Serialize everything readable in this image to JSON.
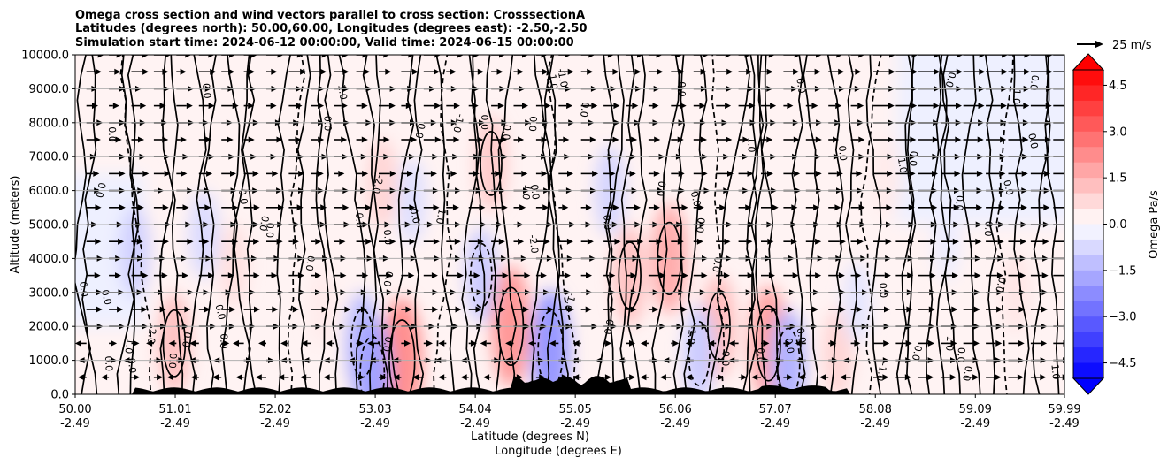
{
  "chart_data": {
    "type": "cross-section-contour",
    "title_lines": [
      "Omega cross section and wind vectors parallel to cross section: CrosssectionA",
      "Latitudes (degrees north): 50.00,60.00, Longitudes (degrees east): -2.50,-2.50",
      "Simulation start time: 2024-06-12 00:00:00, Valid time: 2024-06-15 00:00:00"
    ],
    "ylabel": "Altitude (meters)",
    "xlabel_lines": [
      "Latitude (degrees N)",
      "Longitude (degrees E)"
    ],
    "ylim": [
      0,
      10000
    ],
    "yticks": [
      "0.0",
      "1000.0",
      "2000.0",
      "3000.0",
      "4000.0",
      "5000.0",
      "6000.0",
      "7000.0",
      "8000.0",
      "9000.0",
      "10000.0"
    ],
    "xlim": [
      50.0,
      59.99
    ],
    "xticks": [
      {
        "lat": "50.00",
        "lon": "-2.49"
      },
      {
        "lat": "51.01",
        "lon": "-2.49"
      },
      {
        "lat": "52.02",
        "lon": "-2.49"
      },
      {
        "lat": "53.03",
        "lon": "-2.49"
      },
      {
        "lat": "54.04",
        "lon": "-2.49"
      },
      {
        "lat": "55.05",
        "lon": "-2.49"
      },
      {
        "lat": "56.06",
        "lon": "-2.49"
      },
      {
        "lat": "57.07",
        "lon": "-2.49"
      },
      {
        "lat": "58.08",
        "lon": "-2.49"
      },
      {
        "lat": "59.09",
        "lon": "-2.49"
      },
      {
        "lat": "59.99",
        "lon": "-2.49"
      }
    ],
    "grid": true,
    "colorbar": {
      "label": "Omega Pa/s",
      "ticks": [
        "4.5",
        "3.0",
        "1.5",
        "0.0",
        "−1.5",
        "−3.0",
        "−4.5"
      ],
      "range": [
        -5.0,
        5.0
      ],
      "colormap": "bwr"
    },
    "vector_key_label": "25 m/s",
    "contour_labels": [
      "0.0",
      "1.0",
      "-1.0",
      "-2.0"
    ],
    "regions": [
      {
        "lat": 51.0,
        "alt": 1500,
        "omega": 1.2
      },
      {
        "lat": 51.6,
        "alt": 3800,
        "omega": 0.6
      },
      {
        "lat": 52.5,
        "alt": 2600,
        "omega": 0.4
      },
      {
        "lat": 53.1,
        "alt": 6200,
        "omega": 0.8
      },
      {
        "lat": 53.3,
        "alt": 1000,
        "omega": 2.2
      },
      {
        "lat": 54.2,
        "alt": 6800,
        "omega": 1.0
      },
      {
        "lat": 54.4,
        "alt": 2000,
        "omega": 2.0
      },
      {
        "lat": 55.6,
        "alt": 3500,
        "omega": 1.2
      },
      {
        "lat": 56.0,
        "alt": 4000,
        "omega": 1.6
      },
      {
        "lat": 56.5,
        "alt": 2000,
        "omega": 1.3
      },
      {
        "lat": 57.0,
        "alt": 1500,
        "omega": 1.8
      },
      {
        "lat": 57.7,
        "alt": 1200,
        "omega": 0.8
      },
      {
        "lat": 58.2,
        "alt": 6400,
        "omega": 0.4
      },
      {
        "lat": 59.5,
        "alt": 3000,
        "omega": 0.5
      },
      {
        "lat": 50.6,
        "alt": 4200,
        "omega": -0.9
      },
      {
        "lat": 51.3,
        "alt": 4700,
        "omega": -0.7
      },
      {
        "lat": 52.9,
        "alt": 1500,
        "omega": -1.3
      },
      {
        "lat": 53.0,
        "alt": 600,
        "omega": -1.8
      },
      {
        "lat": 53.4,
        "alt": 5700,
        "omega": -0.6
      },
      {
        "lat": 54.1,
        "alt": 3500,
        "omega": -1.0
      },
      {
        "lat": 54.8,
        "alt": 1300,
        "omega": -2.0
      },
      {
        "lat": 55.4,
        "alt": 6000,
        "omega": -0.8
      },
      {
        "lat": 56.3,
        "alt": 1200,
        "omega": -1.0
      },
      {
        "lat": 57.2,
        "alt": 900,
        "omega": -1.5
      },
      {
        "lat": 57.9,
        "alt": 2700,
        "omega": -0.5
      },
      {
        "lat": 58.8,
        "alt": 4500,
        "omega": -0.35
      },
      {
        "lat": 59.4,
        "alt": 8000,
        "omega": -0.3
      }
    ]
  }
}
